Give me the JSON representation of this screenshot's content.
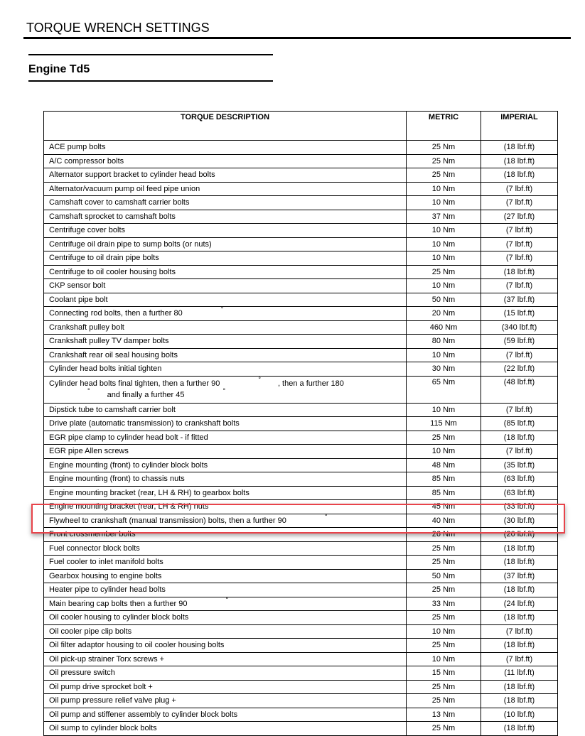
{
  "document": {
    "title": "TORQUE WRENCH SETTINGS",
    "section": "Engine Td5"
  },
  "table": {
    "headers": [
      "TORQUE DESCRIPTION",
      "METRIC",
      "IMPERIAL"
    ],
    "rows": [
      {
        "desc": [
          "ACE pump bolts"
        ],
        "metric": "25 Nm",
        "imperial": "(18 lbf.ft)"
      },
      {
        "desc": [
          "A/C compressor bolts"
        ],
        "metric": "25 Nm",
        "imperial": "(18 lbf.ft)"
      },
      {
        "desc": [
          "Alternator support bracket to cylinder head bolts"
        ],
        "metric": "25 Nm",
        "imperial": "(18 lbf.ft)"
      },
      {
        "desc": [
          "Alternator/vacuum pump oil feed pipe union"
        ],
        "metric": "10 Nm",
        "imperial": "(7 lbf.ft)"
      },
      {
        "desc": [
          "Camshaft cover to camshaft carrier bolts"
        ],
        "metric": "10 Nm",
        "imperial": "(7 lbf.ft)"
      },
      {
        "desc": [
          "Camshaft sprocket to camshaft bolts"
        ],
        "metric": "37 Nm",
        "imperial": "(27 lbf.ft)"
      },
      {
        "desc": [
          "Centrifuge cover bolts"
        ],
        "metric": "10 Nm",
        "imperial": "(7 lbf.ft)"
      },
      {
        "desc": [
          "Centrifuge oil drain pipe to sump bolts (or nuts)"
        ],
        "metric": "10 Nm",
        "imperial": "(7 lbf.ft)"
      },
      {
        "desc": [
          "Centrifuge to oil drain pipe bolts"
        ],
        "metric": "10 Nm",
        "imperial": "(7 lbf.ft)"
      },
      {
        "desc": [
          "Centrifuge to oil cooler housing bolts"
        ],
        "metric": "25 Nm",
        "imperial": "(18 lbf.ft)"
      },
      {
        "desc": [
          "CKP sensor bolt"
        ],
        "metric": "10 Nm",
        "imperial": "(7 lbf.ft)"
      },
      {
        "desc": [
          "Coolant pipe bolt"
        ],
        "metric": "50 Nm",
        "imperial": "(37 lbf.ft)"
      },
      {
        "desc": [
          "Connecting rod bolts, then a further 80",
          "°"
        ],
        "metric": "20 Nm",
        "imperial": "(15 lbf.ft)"
      },
      {
        "desc": [
          "Crankshaft pulley bolt"
        ],
        "metric": "460 Nm",
        "imperial": "(340 lbf.ft)"
      },
      {
        "desc": [
          "Crankshaft pulley TV damper bolts"
        ],
        "metric": "80 Nm",
        "imperial": "(59 lbf.ft)"
      },
      {
        "desc": [
          "Crankshaft rear oil seal housing bolts"
        ],
        "metric": "10 Nm",
        "imperial": "(7 lbf.ft)"
      },
      {
        "desc": [
          "Cylinder head bolts initial tighten"
        ],
        "metric": "30 Nm",
        "imperial": "(22 lbf.ft)"
      },
      {
        "desc": [
          "Cylinder head bolts final tighten, then a further 90",
          "°",
          ", then a further 180",
          "°",
          "and finally a further 45",
          "°"
        ],
        "metric": "65 Nm",
        "imperial": "(48 lbf.ft)",
        "tall": true
      },
      {
        "desc": [
          "Dipstick tube to camshaft carrier bolt"
        ],
        "metric": "10 Nm",
        "imperial": "(7 lbf.ft)"
      },
      {
        "desc": [
          "Drive plate (automatic transmission) to crankshaft bolts"
        ],
        "metric": "115 Nm",
        "imperial": "(85 lbf.ft)"
      },
      {
        "desc": [
          "EGR pipe clamp to cylinder head bolt - if fitted"
        ],
        "metric": "25 Nm",
        "imperial": "(18 lbf.ft)"
      },
      {
        "desc": [
          "EGR pipe Allen screws"
        ],
        "metric": "10 Nm",
        "imperial": "(7 lbf.ft)"
      },
      {
        "desc": [
          "Engine mounting (front) to cylinder block bolts"
        ],
        "metric": "48 Nm",
        "imperial": "(35 lbf.ft)"
      },
      {
        "desc": [
          "Engine mounting (front) to chassis nuts"
        ],
        "metric": "85 Nm",
        "imperial": "(63 lbf.ft)"
      },
      {
        "desc": [
          "Engine mounting bracket (rear, LH & RH) to gearbox bolts"
        ],
        "metric": "85 Nm",
        "imperial": "(63 lbf.ft)"
      },
      {
        "desc": [
          "Engine mounting bracket (rear, LH & RH) nuts"
        ],
        "metric": "45 Nm",
        "imperial": "(33 lbf.ft)"
      },
      {
        "desc": [
          "Flywheel to crankshaft (manual transmission) bolts, then a further 90",
          "°"
        ],
        "metric": "40 Nm",
        "imperial": "(30 lbf.ft)"
      },
      {
        "desc": [
          "Front crossmember bolts"
        ],
        "metric": "26 Nm",
        "imperial": "(20 lbf.ft)"
      },
      {
        "desc": [
          "Fuel connector block bolts"
        ],
        "metric": "25 Nm",
        "imperial": "(18 lbf.ft)"
      },
      {
        "desc": [
          "Fuel cooler to inlet manifold bolts"
        ],
        "metric": "25 Nm",
        "imperial": "(18 lbf.ft)"
      },
      {
        "desc": [
          "Gearbox housing to engine bolts"
        ],
        "metric": "50 Nm",
        "imperial": "(37 lbf.ft)"
      },
      {
        "desc": [
          "Heater pipe to cylinder head bolts"
        ],
        "metric": "25 Nm",
        "imperial": "(18 lbf.ft)"
      },
      {
        "desc": [
          "Main  bearing cap bolts then a further 90",
          "°"
        ],
        "metric": "33 Nm",
        "imperial": "(24 lbf.ft)"
      },
      {
        "desc": [
          "Oil cooler housing to cylinder block bolts"
        ],
        "metric": "25 Nm",
        "imperial": "(18 lbf.ft)"
      },
      {
        "desc": [
          "Oil cooler pipe clip bolts"
        ],
        "metric": "10 Nm",
        "imperial": "(7 lbf.ft)"
      },
      {
        "desc": [
          "Oil filter adaptor housing to oil cooler housing bolts"
        ],
        "metric": "25 Nm",
        "imperial": "(18 lbf.ft)"
      },
      {
        "desc": [
          "Oil pick-up strainer Torx screws +"
        ],
        "metric": "10 Nm",
        "imperial": "(7 lbf.ft)"
      },
      {
        "desc": [
          "Oil pressure switch"
        ],
        "metric": "15 Nm",
        "imperial": "(11 lbf.ft)"
      },
      {
        "desc": [
          "Oil pump drive sprocket bolt +"
        ],
        "metric": "25 Nm",
        "imperial": "(18 lbf.ft)"
      },
      {
        "desc": [
          "Oil pump pressure relief valve plug +"
        ],
        "metric": "25 Nm",
        "imperial": "(18 lbf.ft)"
      },
      {
        "desc": [
          "Oil pump and stiffener assembly to cylinder block bolts"
        ],
        "metric": "13 Nm",
        "imperial": "(10 lbf.ft)"
      },
      {
        "desc": [
          "Oil sump to cylinder block bolts"
        ],
        "metric": "25 Nm",
        "imperial": "(18 lbf.ft)"
      }
    ]
  },
  "highlight": {
    "color": "#e8434a",
    "row": "Flywheel to crankshaft (manual transmission) bolts, then a further 90"
  }
}
